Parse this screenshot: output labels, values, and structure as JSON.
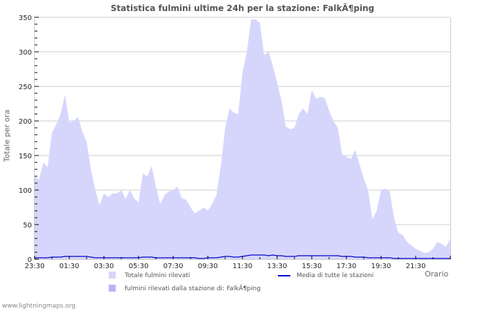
{
  "chart_data": {
    "type": "area",
    "title": "Statistica fulmini ultime 24h per la stazione: FalkÃ¶ping",
    "xlabel": "Orario",
    "ylabel": "Totale per ora",
    "ylim": [
      0,
      350
    ],
    "yticks": [
      "0",
      "50",
      "100",
      "150",
      "200",
      "250",
      "300",
      "350"
    ],
    "xticks": [
      "23:30",
      "01:30",
      "03:30",
      "05:30",
      "07:30",
      "09:30",
      "11:30",
      "13:30",
      "15:30",
      "17:30",
      "19:30",
      "21:30"
    ],
    "grid": true,
    "legend_position": "bottom",
    "series": [
      {
        "name": "Totale fulmini rilevati",
        "type": "area",
        "color": "#d6d6fd",
        "values": [
          120,
          115,
          140,
          133,
          183,
          195,
          210,
          238,
          198,
          200,
          206,
          185,
          170,
          130,
          100,
          78,
          95,
          90,
          95,
          95,
          100,
          87,
          100,
          88,
          82,
          124,
          120,
          135,
          105,
          80,
          93,
          98,
          100,
          105,
          88,
          86,
          75,
          66,
          70,
          75,
          70,
          80,
          93,
          135,
          190,
          218,
          212,
          210,
          270,
          300,
          347,
          347,
          342,
          295,
          300,
          280,
          255,
          230,
          192,
          188,
          190,
          210,
          218,
          210,
          245,
          232,
          235,
          233,
          215,
          200,
          190,
          152,
          148,
          145,
          158,
          138,
          117,
          100,
          58,
          70,
          100,
          102,
          98,
          60,
          38,
          35,
          25,
          20,
          15,
          12,
          9,
          10,
          15,
          25,
          22,
          18,
          30
        ]
      },
      {
        "name": "fulmini rilevati dalla stazione di: FalkÃ¶ping",
        "type": "area",
        "color": "#b5b5fa",
        "values": [
          0,
          0,
          0,
          0,
          0,
          0,
          0,
          0,
          0,
          0,
          0,
          0,
          0,
          0,
          0,
          0,
          0,
          0,
          0,
          0,
          0,
          0,
          0,
          0,
          0,
          0,
          0,
          0,
          0,
          0,
          0,
          0,
          0,
          0,
          0,
          0,
          0,
          0,
          0,
          0,
          0,
          0,
          0,
          0,
          0,
          0,
          0,
          0,
          0,
          0,
          0,
          0,
          0,
          0,
          0,
          0,
          0,
          0,
          0,
          0,
          0,
          0,
          0,
          0,
          0,
          0,
          0,
          0,
          0,
          0,
          0,
          0,
          0,
          0,
          0,
          0,
          0,
          0,
          0,
          0,
          0,
          0,
          0,
          0,
          0,
          0,
          0,
          0,
          0,
          0,
          0,
          0,
          0,
          0,
          0,
          0,
          0
        ]
      },
      {
        "name": "Media di tutte le stazioni",
        "type": "line",
        "color": "#0000cc",
        "values": [
          2,
          2,
          2,
          2,
          3,
          3,
          3,
          4,
          4,
          4,
          4,
          4,
          4,
          3,
          2,
          2,
          2,
          2,
          2,
          2,
          2,
          2,
          2,
          2,
          2,
          3,
          3,
          3,
          2,
          2,
          2,
          2,
          2,
          2,
          2,
          2,
          2,
          2,
          1,
          1,
          2,
          2,
          2,
          3,
          4,
          4,
          3,
          3,
          4,
          5,
          6,
          6,
          6,
          6,
          5,
          6,
          5,
          5,
          4,
          4,
          4,
          5,
          5,
          5,
          5,
          5,
          5,
          5,
          5,
          5,
          5,
          4,
          4,
          4,
          3,
          3,
          3,
          2,
          2,
          2,
          2,
          2,
          2,
          1,
          1,
          1,
          1,
          1,
          1,
          1,
          1,
          1,
          1,
          1,
          1,
          1,
          1
        ]
      }
    ]
  },
  "legend": {
    "items": [
      {
        "label": "Totale fulmini rilevati",
        "color": "#d6d6fd"
      },
      {
        "label": "fulmini rilevati dalla stazione di: FalkÃ¶ping",
        "color": "#b5b5fa"
      },
      {
        "label": "Media di tutte le stazioni",
        "color": "#0000cc"
      }
    ]
  },
  "credit": "www.lightningmaps.org"
}
